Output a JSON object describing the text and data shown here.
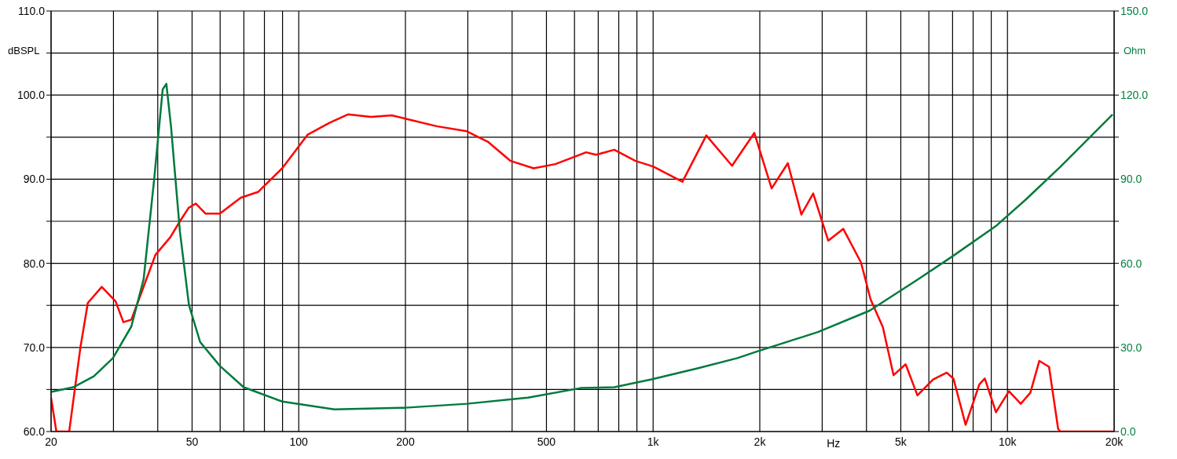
{
  "chart_data": {
    "type": "line",
    "xlabel": "Hz",
    "ylabel": "dBSPL",
    "y2label": "Ohm",
    "log": "x",
    "grid": true,
    "xlim": [
      20,
      20000
    ],
    "xticks": [
      20,
      {
        "value": 30,
        "label": null
      },
      {
        "value": 40,
        "label": null
      },
      50,
      {
        "value": 60,
        "label": null
      },
      {
        "value": 70,
        "label": null
      },
      {
        "value": 80,
        "label": null
      },
      {
        "value": 90,
        "label": null
      },
      100,
      200,
      {
        "value": 300,
        "label": null
      },
      {
        "value": 400,
        "label": null
      },
      500,
      {
        "value": 600,
        "label": null
      },
      {
        "value": 700,
        "label": null
      },
      {
        "value": 800,
        "label": null
      },
      {
        "value": 900,
        "label": null
      },
      {
        "value": 1000,
        "label": "1k"
      },
      {
        "value": 2000,
        "label": "2k"
      },
      {
        "value": 3000,
        "label": null
      },
      {
        "value": 4000,
        "label": null
      },
      {
        "value": 5000,
        "label": "5k"
      },
      {
        "value": 6000,
        "label": null
      },
      {
        "value": 7000,
        "label": null
      },
      {
        "value": 8000,
        "label": null
      },
      {
        "value": 9000,
        "label": null
      },
      {
        "value": 10000,
        "label": "10k"
      },
      {
        "value": 20000,
        "label": "20k"
      }
    ],
    "ylim": [
      60,
      110
    ],
    "yticks": [
      {
        "value": 60,
        "label": "60.0"
      },
      {
        "value": 65,
        "label": null
      },
      {
        "value": 70,
        "label": "70.0"
      },
      {
        "value": 75,
        "label": null
      },
      {
        "value": 80,
        "label": "80.0"
      },
      {
        "value": 85,
        "label": null
      },
      {
        "value": 90,
        "label": "90.0"
      },
      {
        "value": 95,
        "label": null
      },
      {
        "value": 100,
        "label": "100.0"
      },
      {
        "value": 105,
        "label": null
      },
      {
        "value": 110,
        "label": "110.0"
      }
    ],
    "y2lim": [
      0,
      150
    ],
    "y2ticks": [
      {
        "value": 0,
        "label": "0.0"
      },
      {
        "value": 15,
        "label": null
      },
      {
        "value": 30,
        "label": "30.0"
      },
      {
        "value": 45,
        "label": null
      },
      {
        "value": 60,
        "label": "60.0"
      },
      {
        "value": 75,
        "label": null
      },
      {
        "value": 90,
        "label": "90.0"
      },
      {
        "value": 105,
        "label": null
      },
      {
        "value": 120,
        "label": "120.0"
      },
      {
        "value": 135,
        "label": null
      },
      {
        "value": 150,
        "label": "150.0"
      }
    ],
    "series": [
      {
        "color": "#ff0000",
        "x": [
          20,
          20.7,
          22.5,
          24.2,
          25.4,
          27.8,
          30.4,
          32,
          33.7,
          35.6,
          39.4,
          43.4,
          46.2,
          48.9,
          51.2,
          54.6,
          59.9,
          68.6,
          76.9,
          89.8,
          106,
          122,
          137.6,
          160,
          183,
          200,
          245,
          298,
          343,
          395,
          460,
          530,
          647,
          690,
          777,
          890,
          1002,
          1210,
          1413,
          1670,
          1930,
          2160,
          2400,
          2620,
          2830,
          3120,
          3440,
          3860,
          4110,
          4450,
          4770,
          5160,
          5570,
          6170,
          6740,
          7040,
          7620,
          8330,
          8630,
          9280,
          10100,
          10900,
          11600,
          12300,
          13100,
          13900,
          14100,
          20000
        ],
        "values": [
          64,
          60,
          60,
          70,
          75.3,
          77.2,
          75.5,
          73,
          73.3,
          76,
          81,
          83.1,
          85,
          86.6,
          87.1,
          85.9,
          85.9,
          87.8,
          88.5,
          91.3,
          95.3,
          96.7,
          97.7,
          97.4,
          97.6,
          97.2,
          96.3,
          95.7,
          94.4,
          92.2,
          91.3,
          91.8,
          93.2,
          92.9,
          93.5,
          92.2,
          91.5,
          89.7,
          95.2,
          91.6,
          95.5,
          88.9,
          91.9,
          85.8,
          88.3,
          82.7,
          84.1,
          80.1,
          75.7,
          72.4,
          66.7,
          68,
          64.3,
          66.2,
          67,
          66.3,
          60.8,
          65.6,
          66.3,
          62.3,
          64.8,
          63.3,
          64.6,
          68.4,
          67.7,
          60.3,
          60,
          60
        ]
      },
      {
        "color": "#007a3d",
        "axis": "y2",
        "x": [
          20,
          23.1,
          26.4,
          29.9,
          33.7,
          36.5,
          39.1,
          41.3,
          42.3,
          43.6,
          46.2,
          49,
          52.7,
          59.9,
          69.9,
          89.8,
          126,
          200,
          298,
          444,
          624,
          777,
          990,
          1340,
          1730,
          1960,
          2920,
          4080,
          5560,
          6960,
          9280,
          11300,
          14100,
          19800
        ],
        "values": [
          14.1,
          15.8,
          19.7,
          26.2,
          37.5,
          54.4,
          90.2,
          122,
          124,
          108.8,
          71.3,
          45.1,
          31.9,
          23.4,
          15.8,
          10.7,
          7.9,
          8.5,
          9.9,
          12.1,
          15.5,
          15.8,
          18.6,
          22.6,
          26.2,
          28.5,
          35.5,
          43.1,
          54.1,
          62.3,
          73.3,
          82.9,
          94.4,
          113.1
        ]
      }
    ]
  }
}
